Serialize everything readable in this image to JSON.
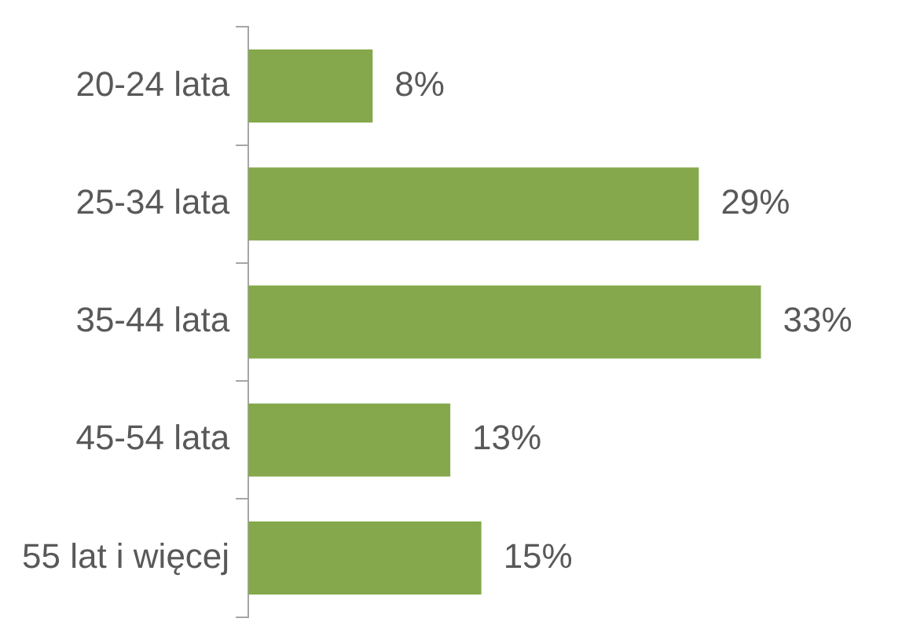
{
  "chart_data": {
    "type": "bar",
    "orientation": "horizontal",
    "categories": [
      "20-24 lata",
      "25-34 lata",
      "35-44 lata",
      "45-54 lata",
      "55 lat i więcej"
    ],
    "values": [
      8,
      29,
      33,
      13,
      15
    ],
    "value_labels": [
      "8%",
      "29%",
      "33%",
      "13%",
      "15%"
    ],
    "color": "#84a84b",
    "tick_labels": "y",
    "grid": false,
    "legend": false
  }
}
